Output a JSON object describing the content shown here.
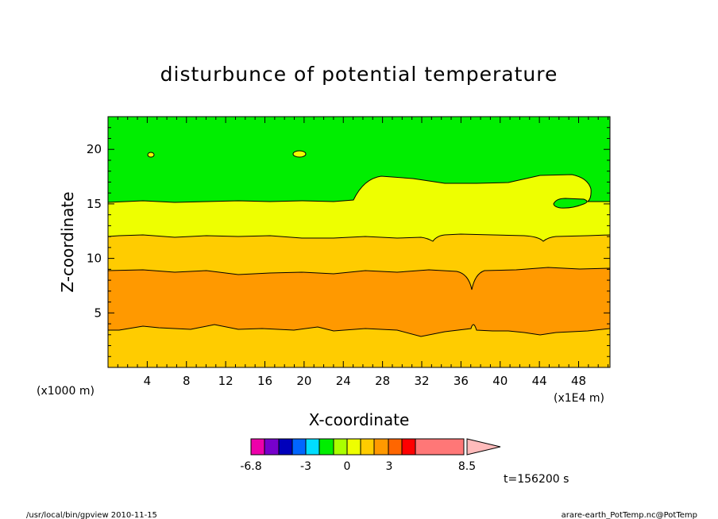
{
  "chart_data": {
    "type": "contour",
    "title": "disturbunce of potential temperature",
    "xlabel": "X-coordinate",
    "ylabel": "Z-coordinate",
    "x_unit": "(x1E4 m)",
    "y_unit": "(x1000 m)",
    "xlim": [
      0,
      51.2
    ],
    "ylim": [
      0,
      23
    ],
    "x_ticks": [
      4,
      8,
      12,
      16,
      20,
      24,
      28,
      32,
      36,
      40,
      44,
      48
    ],
    "y_ticks": [
      5,
      10,
      15,
      20
    ],
    "time_label": "t=156200 s",
    "layers": [
      {
        "name": "z 0-3.5",
        "color": "#ffcc00"
      },
      {
        "name": "z 3.5-8.8",
        "color": "#ff9900"
      },
      {
        "name": "z 8.8-11.9",
        "color": "#ffcc00"
      },
      {
        "name": "z 11.9-15.2",
        "color": "#eeff00"
      },
      {
        "name": "z 15.2-23",
        "color": "#00ee00"
      }
    ],
    "colorbar": {
      "tick_labels": [
        "-6.8",
        "-3",
        "0",
        "3",
        "8.5"
      ],
      "colors": [
        "#ee00aa",
        "#7700cc",
        "#0000bb",
        "#0066ff",
        "#00ddff",
        "#00ee00",
        "#aaff00",
        "#eeff00",
        "#ffcc00",
        "#ff9900",
        "#ff6600",
        "#ff0000",
        "#ff7777"
      ],
      "arrow_color": "#ffbbbb"
    }
  },
  "footer": {
    "left": "/usr/local/bin/gpview  2010-11-15",
    "right": "arare-earth_PotTemp.nc@PotTemp"
  }
}
